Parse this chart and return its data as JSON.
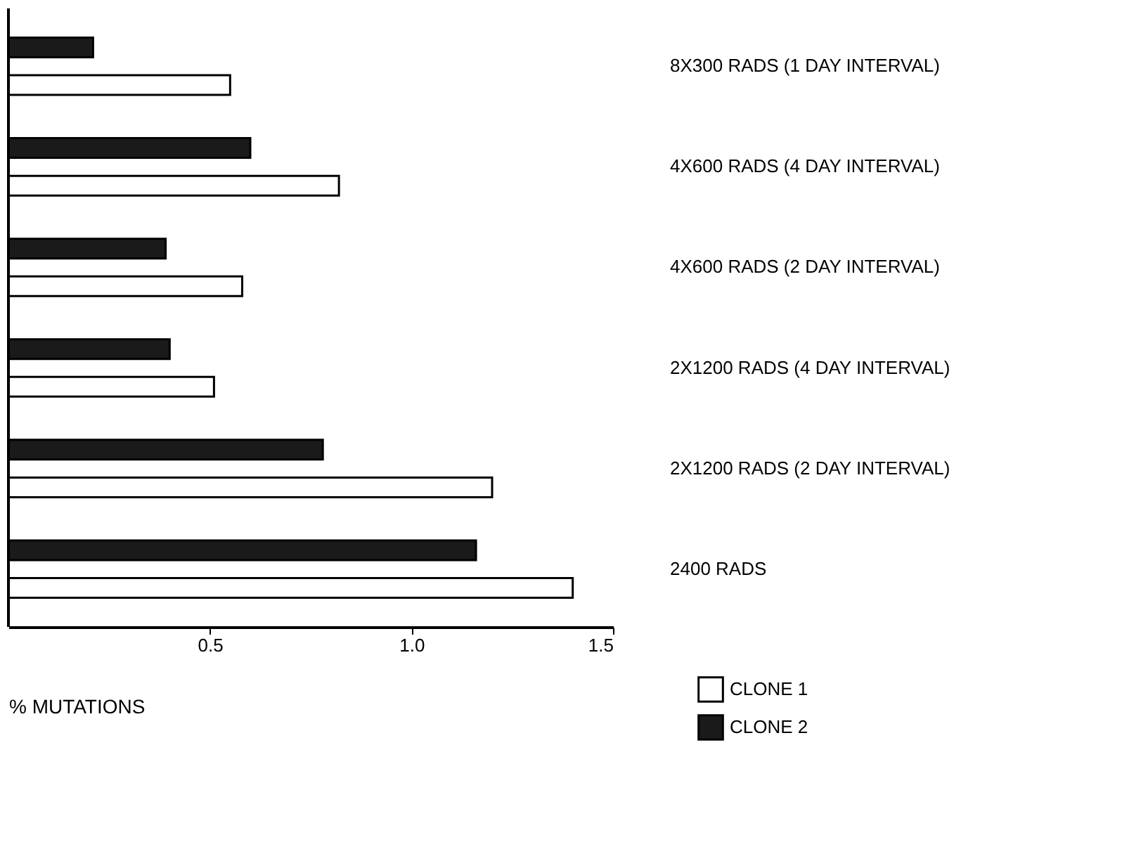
{
  "chart_data": {
    "type": "bar",
    "orientation": "horizontal",
    "xlabel": "% MUTATIONS",
    "categories": [
      "8X300 RADS (1 DAY INTERVAL)",
      "4X600 RADS (4 DAY INTERVAL)",
      "4X600 RADS (2 DAY INTERVAL)",
      "2X1200 RADS (4 DAY INTERVAL)",
      "2X1200 RADS (2 DAY INTERVAL)",
      "2400 RADS"
    ],
    "series": [
      {
        "name": "CLONE 1",
        "color": "#ffffff",
        "values": [
          0.55,
          0.82,
          0.58,
          0.51,
          1.2,
          1.4
        ]
      },
      {
        "name": "CLONE 2",
        "color": "#1a1a1a",
        "values": [
          0.21,
          0.6,
          0.39,
          0.4,
          0.78,
          1.16
        ]
      }
    ],
    "xlim": [
      0,
      1.5
    ],
    "xticks": [
      0.5,
      {
        "value": 1,
        "label": "1.0"
      },
      1.5
    ],
    "grid": false,
    "legend": "bottom right"
  }
}
